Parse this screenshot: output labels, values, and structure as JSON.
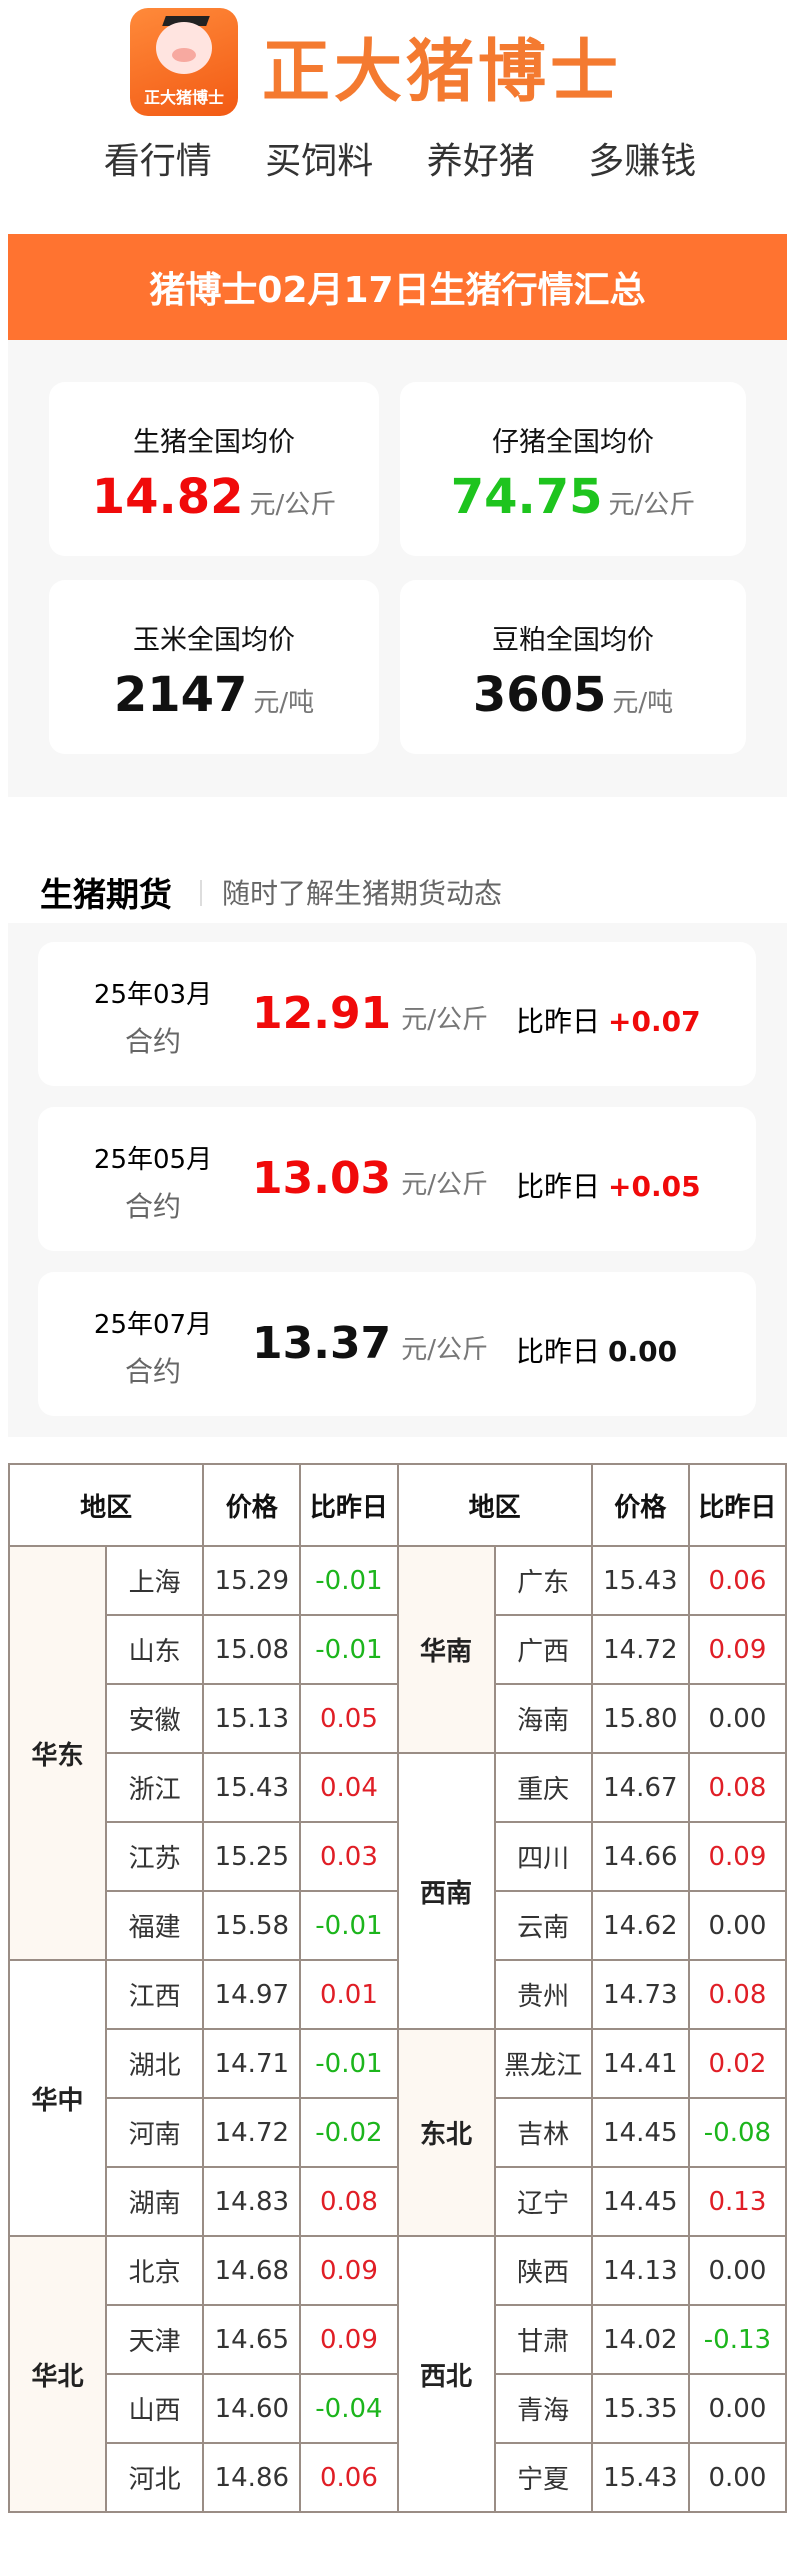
{
  "brand": {
    "logo_text": "正大猪博士",
    "name": "正大猪博士",
    "slogans": [
      "看行情",
      "买饲料",
      "养好猪",
      "多赚钱"
    ]
  },
  "banner": {
    "title": "猪博士02月17日生猪行情汇总"
  },
  "summary": [
    {
      "label": "生猪全国均价",
      "value": "14.82",
      "unit": "元/公斤",
      "color": "#f00a0a"
    },
    {
      "label": "仔猪全国均价",
      "value": "74.75",
      "unit": "元/公斤",
      "color": "#1ec41e"
    },
    {
      "label": "玉米全国均价",
      "value": "2147",
      "unit": "元/吨",
      "color": "#111111"
    },
    {
      "label": "豆粕全国均价",
      "value": "3605",
      "unit": "元/吨",
      "color": "#111111"
    }
  ],
  "futures": {
    "title": "生猪期货",
    "subtitle": "随时了解生猪期货动态",
    "compare_label": "比昨日",
    "items": [
      {
        "month": "25年03月",
        "contract": "合约",
        "price": "12.91",
        "unit": "元/公斤",
        "change": "+0.07",
        "color": "#f00a0a"
      },
      {
        "month": "25年05月",
        "contract": "合约",
        "price": "13.03",
        "unit": "元/公斤",
        "change": "+0.05",
        "color": "#f00a0a"
      },
      {
        "month": "25年07月",
        "contract": "合约",
        "price": "13.37",
        "unit": "元/公斤",
        "change": "0.00",
        "color": "#111111"
      }
    ]
  },
  "table": {
    "headers": [
      "地区",
      "价格",
      "比昨日",
      "地区",
      "价格",
      "比昨日"
    ],
    "left": [
      {
        "region": "华东",
        "rows": [
          [
            "上海",
            "15.29",
            "-0.01"
          ],
          [
            "山东",
            "15.08",
            "-0.01"
          ],
          [
            "安徽",
            "15.13",
            "0.05"
          ],
          [
            "浙江",
            "15.43",
            "0.04"
          ],
          [
            "江苏",
            "15.25",
            "0.03"
          ],
          [
            "福建",
            "15.58",
            "-0.01"
          ]
        ]
      },
      {
        "region": "华中",
        "rows": [
          [
            "江西",
            "14.97",
            "0.01"
          ],
          [
            "湖北",
            "14.71",
            "-0.01"
          ],
          [
            "河南",
            "14.72",
            "-0.02"
          ],
          [
            "湖南",
            "14.83",
            "0.08"
          ]
        ]
      },
      {
        "region": "华北",
        "rows": [
          [
            "北京",
            "14.68",
            "0.09"
          ],
          [
            "天津",
            "14.65",
            "0.09"
          ],
          [
            "山西",
            "14.60",
            "-0.04"
          ],
          [
            "河北",
            "14.86",
            "0.06"
          ]
        ]
      }
    ],
    "right": [
      {
        "region": "华南",
        "rows": [
          [
            "广东",
            "15.43",
            "0.06"
          ],
          [
            "广西",
            "14.72",
            "0.09"
          ],
          [
            "海南",
            "15.80",
            "0.00"
          ]
        ]
      },
      {
        "region": "西南",
        "rows": [
          [
            "重庆",
            "14.67",
            "0.08"
          ],
          [
            "四川",
            "14.66",
            "0.09"
          ],
          [
            "云南",
            "14.62",
            "0.00"
          ],
          [
            "贵州",
            "14.73",
            "0.08"
          ]
        ]
      },
      {
        "region": "东北",
        "rows": [
          [
            "黑龙江",
            "14.41",
            "0.02"
          ],
          [
            "吉林",
            "14.45",
            "-0.08"
          ],
          [
            "辽宁",
            "14.45",
            "0.13"
          ]
        ]
      },
      {
        "region": "西北",
        "rows": [
          [
            "陕西",
            "14.13",
            "0.00"
          ],
          [
            "甘肃",
            "14.02",
            "-0.13"
          ],
          [
            "青海",
            "15.35",
            "0.00"
          ],
          [
            "宁夏",
            "15.43",
            "0.00"
          ]
        ]
      }
    ]
  }
}
